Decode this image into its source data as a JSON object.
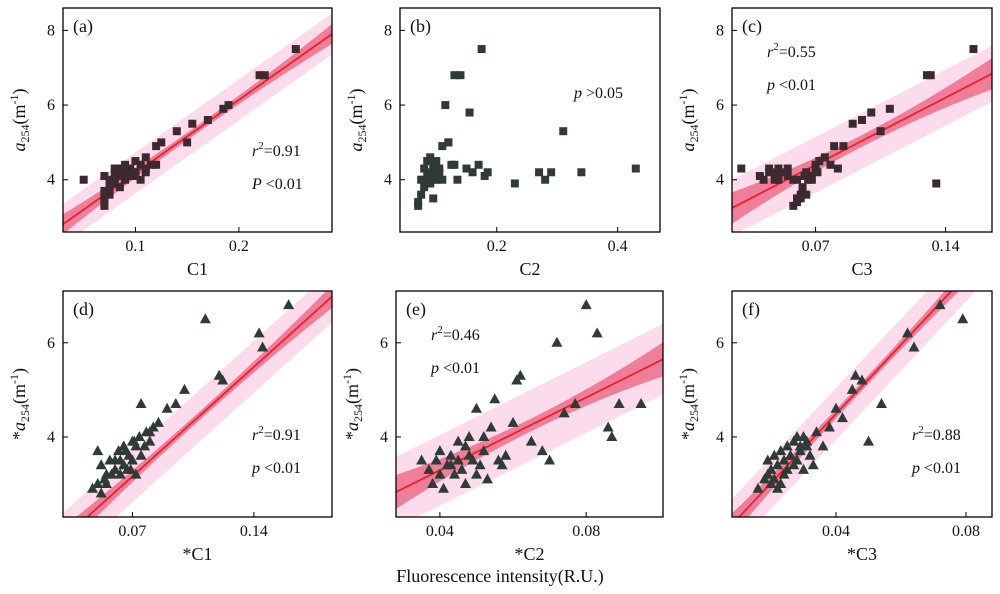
{
  "figure": {
    "common_xlabel": "Fluorescence intensity(R.U.)"
  },
  "colors": {
    "fit_line": "#e8222a",
    "confidence_band": "#ee6d8a",
    "prediction_band": "#fbdbec",
    "marker": "#3c2a30",
    "marker_dark": "#2f3b37"
  },
  "chart_data": [
    {
      "type": "scatter",
      "label": "(a)",
      "marker": "square",
      "xlabel": "C1",
      "ylabel_base": "a",
      "ylabel_sub": "254",
      "ylabel_unit": "(m",
      "ylabel_sup": "-1",
      "ylabel_close": ")",
      "ylabel_prefix": "",
      "xlim": [
        0.03,
        0.29
      ],
      "ylim": [
        2.6,
        8.6
      ],
      "xticks": [
        0.1,
        0.2
      ],
      "xtick_labels": [
        "0.1",
        "0.2"
      ],
      "yticks": [
        4,
        6,
        8
      ],
      "ytick_labels": [
        "4",
        "6",
        "8"
      ],
      "fit": {
        "slope": 19.6,
        "intercept": 2.22,
        "conf": 0.22,
        "pred": 0.55
      },
      "stats": [
        {
          "var": "r",
          "sup": "2",
          "op": "=",
          "val": "0.91"
        },
        {
          "var": "P",
          "sup": "",
          "op": "<",
          "val": "0.01"
        }
      ],
      "stats_pos": "right",
      "x": [
        0.05,
        0.07,
        0.07,
        0.07,
        0.07,
        0.075,
        0.075,
        0.08,
        0.08,
        0.08,
        0.085,
        0.085,
        0.09,
        0.09,
        0.09,
        0.095,
        0.095,
        0.1,
        0.1,
        0.1,
        0.105,
        0.11,
        0.11,
        0.115,
        0.12,
        0.125,
        0.14,
        0.15,
        0.155,
        0.17,
        0.185,
        0.19,
        0.22,
        0.225,
        0.255,
        0.07,
        0.075,
        0.085,
        0.08,
        0.09,
        0.1,
        0.105,
        0.11,
        0.12,
        0.095
      ],
      "y": [
        4.0,
        3.3,
        3.4,
        3.5,
        4.1,
        3.6,
        4.0,
        3.9,
        4.2,
        4.3,
        4.1,
        4.3,
        4.0,
        4.2,
        4.4,
        4.1,
        4.3,
        4.2,
        4.1,
        4.5,
        4.0,
        4.6,
        4.2,
        4.4,
        4.9,
        5.0,
        5.3,
        5.0,
        5.5,
        5.6,
        5.9,
        6.0,
        6.8,
        6.8,
        7.5,
        3.7,
        3.8,
        3.8,
        4.0,
        4.3,
        4.2,
        4.4,
        4.3,
        4.4,
        4.2
      ]
    },
    {
      "type": "scatter",
      "label": "(b)",
      "marker": "square",
      "xlabel": "C2",
      "ylabel_base": "a",
      "ylabel_sub": "254",
      "ylabel_unit": "(m",
      "ylabel_sup": "-1",
      "ylabel_close": ")",
      "ylabel_prefix": "",
      "xlim": [
        0.04,
        0.47
      ],
      "ylim": [
        2.6,
        8.6
      ],
      "xticks": [
        0.2,
        0.4
      ],
      "xtick_labels": [
        "0.2",
        "0.4"
      ],
      "yticks": [
        4,
        6,
        8
      ],
      "ytick_labels": [
        "4",
        "6",
        "8"
      ],
      "fit": null,
      "stats": [
        {
          "var": "p",
          "sup": "",
          "op": ">",
          "val": "0.05"
        }
      ],
      "stats_pos": "right-top",
      "x": [
        0.07,
        0.07,
        0.075,
        0.075,
        0.08,
        0.08,
        0.08,
        0.085,
        0.085,
        0.09,
        0.09,
        0.09,
        0.095,
        0.095,
        0.1,
        0.1,
        0.1,
        0.105,
        0.11,
        0.11,
        0.115,
        0.12,
        0.125,
        0.13,
        0.135,
        0.14,
        0.15,
        0.155,
        0.16,
        0.17,
        0.175,
        0.18,
        0.185,
        0.23,
        0.27,
        0.28,
        0.29,
        0.31,
        0.34,
        0.43,
        0.12,
        0.1,
        0.13,
        0.095,
        0.105
      ],
      "y": [
        3.3,
        3.4,
        3.6,
        4.0,
        3.8,
        4.0,
        4.3,
        4.1,
        4.5,
        3.9,
        4.2,
        4.6,
        4.0,
        4.4,
        4.1,
        4.3,
        4.5,
        4.2,
        4.0,
        4.9,
        6.0,
        5.0,
        4.4,
        6.8,
        4.0,
        6.8,
        4.3,
        5.8,
        4.2,
        4.4,
        7.5,
        4.1,
        4.2,
        3.9,
        4.2,
        4.0,
        4.2,
        5.3,
        4.2,
        4.3,
        5.0,
        4.0,
        4.4,
        3.5,
        4.3
      ]
    },
    {
      "type": "scatter",
      "label": "(c)",
      "marker": "square",
      "xlabel": "C3",
      "ylabel_base": "a",
      "ylabel_sub": "254",
      "ylabel_unit": "(m",
      "ylabel_sup": "-1",
      "ylabel_close": ")",
      "ylabel_prefix": "",
      "xlim": [
        0.025,
        0.165
      ],
      "ylim": [
        2.6,
        8.6
      ],
      "xticks": [
        0.07,
        0.14
      ],
      "xtick_labels": [
        "0.07",
        "0.14"
      ],
      "yticks": [
        4,
        6,
        8
      ],
      "ytick_labels": [
        "4",
        "6",
        "8"
      ],
      "fit": {
        "slope": 25.7,
        "intercept": 2.6,
        "conf": 0.35,
        "pred": 0.75
      },
      "stats": [
        {
          "var": "r",
          "sup": "2",
          "op": "=",
          "val": "0.55"
        },
        {
          "var": "p",
          "sup": "",
          "op": "<",
          "val": "0.01"
        }
      ],
      "stats_pos": "left-top",
      "x": [
        0.03,
        0.04,
        0.042,
        0.045,
        0.045,
        0.048,
        0.05,
        0.05,
        0.052,
        0.055,
        0.055,
        0.058,
        0.06,
        0.06,
        0.062,
        0.063,
        0.065,
        0.065,
        0.066,
        0.068,
        0.07,
        0.07,
        0.072,
        0.075,
        0.078,
        0.08,
        0.082,
        0.085,
        0.09,
        0.095,
        0.1,
        0.105,
        0.11,
        0.13,
        0.132,
        0.135,
        0.155,
        0.06,
        0.062,
        0.064,
        0.058,
        0.05,
        0.047,
        0.067,
        0.071
      ],
      "y": [
        4.3,
        4.1,
        4.0,
        4.2,
        4.3,
        4.0,
        4.3,
        4.1,
        4.2,
        4.1,
        4.3,
        3.3,
        3.4,
        3.5,
        3.6,
        3.8,
        3.6,
        4.2,
        4.0,
        4.0,
        4.3,
        4.4,
        4.5,
        4.6,
        4.4,
        4.9,
        4.3,
        4.9,
        5.5,
        5.6,
        5.8,
        5.3,
        5.9,
        6.8,
        6.8,
        3.9,
        7.5,
        4.0,
        3.5,
        4.1,
        4.0,
        4.0,
        4.2,
        4.1,
        4.2
      ]
    },
    {
      "type": "scatter",
      "label": "(d)",
      "marker": "triangle",
      "xlabel": "*C1",
      "ylabel_base": "a",
      "ylabel_sub": "254",
      "ylabel_unit": "(m",
      "ylabel_sup": "-1",
      "ylabel_close": ")",
      "ylabel_prefix": "*",
      "xlim": [
        0.03,
        0.185
      ],
      "ylim": [
        2.3,
        7.1
      ],
      "xticks": [
        0.07,
        0.14
      ],
      "xtick_labels": [
        "0.07",
        "0.14"
      ],
      "yticks": [
        4,
        6
      ],
      "ytick_labels": [
        "4",
        "6"
      ],
      "fit": {
        "slope": 33.2,
        "intercept": 0.84,
        "conf": 0.2,
        "pred": 0.55
      },
      "stats": [
        {
          "var": "r",
          "sup": "2",
          "op": "=",
          "val": "0.91"
        },
        {
          "var": "p",
          "sup": "",
          "op": "<",
          "val": "0.01"
        }
      ],
      "stats_pos": "right",
      "x": [
        0.047,
        0.05,
        0.05,
        0.052,
        0.055,
        0.055,
        0.057,
        0.06,
        0.06,
        0.062,
        0.063,
        0.065,
        0.065,
        0.067,
        0.068,
        0.07,
        0.07,
        0.072,
        0.072,
        0.074,
        0.075,
        0.077,
        0.078,
        0.08,
        0.082,
        0.085,
        0.09,
        0.095,
        0.1,
        0.112,
        0.12,
        0.122,
        0.143,
        0.145,
        0.16,
        0.052,
        0.075,
        0.058,
        0.066,
        0.069,
        0.071,
        0.08,
        0.054,
        0.063
      ],
      "y": [
        2.9,
        3.0,
        3.7,
        2.8,
        3.0,
        3.2,
        3.5,
        3.3,
        3.5,
        3.7,
        3.2,
        3.4,
        3.8,
        3.3,
        3.6,
        3.5,
        3.9,
        3.2,
        3.8,
        4.0,
        4.7,
        3.8,
        4.1,
        4.1,
        4.2,
        4.3,
        4.6,
        4.7,
        5.0,
        6.5,
        5.3,
        5.2,
        6.2,
        5.9,
        6.8,
        3.4,
        3.6,
        3.2,
        3.7,
        3.3,
        3.9,
        3.9,
        3.1,
        3.5
      ]
    },
    {
      "type": "scatter",
      "label": "(e)",
      "marker": "triangle",
      "xlabel": "*C2",
      "ylabel_base": "a",
      "ylabel_sub": "254",
      "ylabel_unit": "(m",
      "ylabel_sup": "-1",
      "ylabel_close": ")",
      "ylabel_prefix": "*",
      "xlim": [
        0.028,
        0.101
      ],
      "ylim": [
        2.3,
        7.1
      ],
      "xticks": [
        0.04,
        0.08
      ],
      "xtick_labels": [
        "0.04",
        "0.08"
      ],
      "yticks": [
        4,
        6
      ],
      "ytick_labels": [
        "4",
        "6"
      ],
      "fit": {
        "slope": 38.6,
        "intercept": 1.75,
        "conf": 0.3,
        "pred": 0.75
      },
      "stats": [
        {
          "var": "r",
          "sup": "2",
          "op": "=",
          "val": "0.46"
        },
        {
          "var": "p",
          "sup": "",
          "op": "<",
          "val": "0.01"
        }
      ],
      "stats_pos": "left-top",
      "x": [
        0.035,
        0.037,
        0.038,
        0.039,
        0.04,
        0.04,
        0.041,
        0.042,
        0.043,
        0.044,
        0.045,
        0.045,
        0.046,
        0.047,
        0.048,
        0.048,
        0.049,
        0.05,
        0.05,
        0.051,
        0.052,
        0.052,
        0.053,
        0.054,
        0.055,
        0.056,
        0.058,
        0.06,
        0.061,
        0.062,
        0.065,
        0.068,
        0.07,
        0.072,
        0.074,
        0.077,
        0.08,
        0.083,
        0.086,
        0.087,
        0.089,
        0.095,
        0.043,
        0.047,
        0.057
      ],
      "y": [
        3.5,
        3.3,
        3.0,
        3.5,
        3.2,
        3.7,
        2.9,
        3.4,
        3.6,
        3.2,
        3.5,
        3.9,
        3.3,
        3.8,
        3.6,
        4.0,
        3.5,
        3.2,
        4.6,
        3.4,
        4.0,
        3.7,
        3.1,
        4.2,
        4.8,
        3.5,
        3.6,
        4.3,
        5.2,
        5.3,
        3.9,
        3.7,
        3.5,
        6.0,
        4.5,
        4.7,
        6.8,
        6.2,
        4.2,
        4.0,
        4.7,
        4.7,
        3.4,
        3.0,
        3.4
      ]
    },
    {
      "type": "scatter",
      "label": "(f)",
      "marker": "triangle",
      "xlabel": "*C3",
      "ylabel_base": "a",
      "ylabel_sub": "254",
      "ylabel_unit": "(m",
      "ylabel_sup": "-1",
      "ylabel_close": ")",
      "ylabel_prefix": "*",
      "xlim": [
        0.008,
        0.088
      ],
      "ylim": [
        2.3,
        7.1
      ],
      "xticks": [
        0.04,
        0.08
      ],
      "xtick_labels": [
        "0.04",
        "0.08"
      ],
      "yticks": [
        4,
        6
      ],
      "ytick_labels": [
        "4",
        "6"
      ],
      "fit": {
        "slope": 73.5,
        "intercept": 1.55,
        "conf": 0.2,
        "pred": 0.55
      },
      "stats": [
        {
          "var": "r",
          "sup": "2",
          "op": "=",
          "val": "0.88"
        },
        {
          "var": "p",
          "sup": "",
          "op": "<",
          "val": "0.01"
        }
      ],
      "stats_pos": "right",
      "x": [
        0.016,
        0.018,
        0.019,
        0.02,
        0.02,
        0.021,
        0.022,
        0.022,
        0.023,
        0.024,
        0.024,
        0.025,
        0.025,
        0.026,
        0.027,
        0.027,
        0.028,
        0.028,
        0.029,
        0.03,
        0.03,
        0.031,
        0.032,
        0.033,
        0.034,
        0.036,
        0.038,
        0.04,
        0.042,
        0.045,
        0.046,
        0.048,
        0.05,
        0.054,
        0.062,
        0.064,
        0.072,
        0.079,
        0.021,
        0.023,
        0.026,
        0.029,
        0.019,
        0.031
      ],
      "y": [
        2.9,
        3.1,
        3.5,
        3.0,
        3.3,
        3.6,
        2.9,
        3.4,
        3.7,
        3.2,
        3.5,
        3.3,
        3.8,
        3.6,
        3.4,
        3.9,
        3.5,
        4.0,
        3.7,
        3.3,
        4.0,
        3.8,
        3.6,
        3.4,
        4.1,
        3.8,
        4.2,
        4.6,
        4.4,
        5.0,
        5.3,
        5.2,
        3.9,
        4.7,
        6.2,
        5.9,
        6.8,
        6.5,
        3.1,
        3.0,
        3.6,
        3.8,
        3.2,
        3.9
      ]
    }
  ]
}
